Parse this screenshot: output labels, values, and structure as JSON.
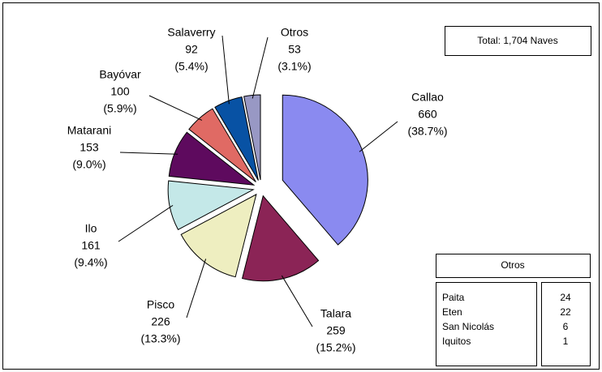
{
  "chart_data": {
    "type": "pie",
    "categories": [
      "Callao",
      "Talara",
      "Pisco",
      "Ilo",
      "Matarani",
      "Bayóvar",
      "Salaverry",
      "Otros"
    ],
    "values": [
      660,
      259,
      226,
      161,
      153,
      100,
      92,
      53
    ],
    "percent_labels": [
      "(38.7%)",
      "(15.2%)",
      "(13.3%)",
      "(9.4%)",
      "(9.0%)",
      "(5.9%)",
      "(5.4%)",
      "(3.1%)"
    ],
    "colors": [
      "#8a8af0",
      "#8b2456",
      "#eeeec0",
      "#c4e8e8",
      "#5e0a5e",
      "#e06a64",
      "#0852a4",
      "#9898c4"
    ],
    "annotation": "Total: 1,704 Naves",
    "otros_table": {
      "title": "Otros",
      "rows": [
        [
          "Paita",
          "24"
        ],
        [
          "Eten",
          "22"
        ],
        [
          "San Nicolás",
          "6"
        ],
        [
          "Iquitos",
          "1"
        ]
      ]
    }
  }
}
